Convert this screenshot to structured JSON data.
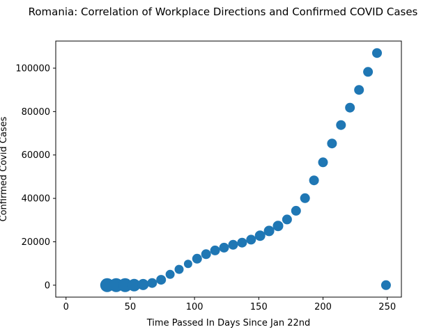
{
  "chart_data": {
    "type": "scatter",
    "title": "Romania: Correlation of Workplace Directions and Confirmed COVID Cases",
    "xlabel": "Time Passed In Days Since Jan 22nd",
    "ylabel": "Confirmed Covid Cases",
    "xlim": [
      -8,
      261
    ],
    "ylim": [
      -5500,
      112500
    ],
    "xticks": [
      0,
      50,
      100,
      150,
      200,
      250
    ],
    "yticks": [
      0,
      20000,
      40000,
      60000,
      80000,
      100000
    ],
    "grid": false,
    "legend": "none",
    "marker_color": "#1f77b4",
    "points": [
      {
        "x": 32,
        "y": 0,
        "size": 10
      },
      {
        "x": 39,
        "y": 0,
        "size": 10
      },
      {
        "x": 46,
        "y": 0,
        "size": 10
      },
      {
        "x": 53,
        "y": 0,
        "size": 9
      },
      {
        "x": 60,
        "y": 300,
        "size": 8
      },
      {
        "x": 67,
        "y": 1000,
        "size": 7
      },
      {
        "x": 74,
        "y": 2500,
        "size": 7
      },
      {
        "x": 81,
        "y": 5000,
        "size": 6.5
      },
      {
        "x": 88,
        "y": 7300,
        "size": 6.5
      },
      {
        "x": 95,
        "y": 9800,
        "size": 6
      },
      {
        "x": 102,
        "y": 12200,
        "size": 7
      },
      {
        "x": 109,
        "y": 14300,
        "size": 7
      },
      {
        "x": 116,
        "y": 16000,
        "size": 7
      },
      {
        "x": 123,
        "y": 17300,
        "size": 7
      },
      {
        "x": 130,
        "y": 18600,
        "size": 7
      },
      {
        "x": 137,
        "y": 19600,
        "size": 7
      },
      {
        "x": 144,
        "y": 21000,
        "size": 7
      },
      {
        "x": 151,
        "y": 22800,
        "size": 7.5
      },
      {
        "x": 158,
        "y": 25000,
        "size": 7.5
      },
      {
        "x": 165,
        "y": 27300,
        "size": 7.5
      },
      {
        "x": 172,
        "y": 30300,
        "size": 7
      },
      {
        "x": 179,
        "y": 34300,
        "size": 7
      },
      {
        "x": 186,
        "y": 40100,
        "size": 7
      },
      {
        "x": 193,
        "y": 48300,
        "size": 7
      },
      {
        "x": 200,
        "y": 56600,
        "size": 7
      },
      {
        "x": 207,
        "y": 65300,
        "size": 7
      },
      {
        "x": 214,
        "y": 73800,
        "size": 7
      },
      {
        "x": 221,
        "y": 81800,
        "size": 7
      },
      {
        "x": 228,
        "y": 90000,
        "size": 7
      },
      {
        "x": 235,
        "y": 98300,
        "size": 7
      },
      {
        "x": 242,
        "y": 107000,
        "size": 7
      },
      {
        "x": 249,
        "y": 0,
        "size": 7
      }
    ]
  }
}
